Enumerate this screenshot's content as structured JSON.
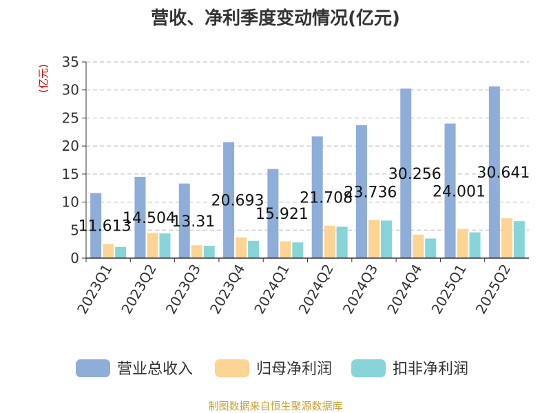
{
  "chart_data": {
    "type": "bar",
    "title": "营收、净利季度变动情况(亿元)",
    "ylabel": "(亿元)",
    "ylim": [
      0,
      35
    ],
    "yticks": [
      0,
      5,
      10,
      15,
      20,
      25,
      30,
      35
    ],
    "grid": true,
    "legend_position": "bottom",
    "categories": [
      "2023Q1",
      "2023Q2",
      "2023Q3",
      "2023Q4",
      "2024Q1",
      "2024Q2",
      "2024Q3",
      "2024Q4",
      "2025Q1",
      "2025Q2"
    ],
    "series": [
      {
        "name": "营业总收入",
        "color": "#8eadd9",
        "values": [
          11.613,
          14.504,
          13.31,
          20.693,
          15.921,
          21.708,
          23.736,
          30.256,
          24.001,
          30.641
        ],
        "labels": [
          "11.613",
          "14.504",
          "13.31",
          "20.693",
          "15.921",
          "21.708",
          "23.736",
          "30.256",
          "24.001",
          "30.641"
        ]
      },
      {
        "name": "归母净利润",
        "color": "#fdd493",
        "values": [
          2.5,
          4.5,
          2.3,
          3.7,
          3.0,
          5.8,
          6.8,
          4.2,
          5.2,
          7.1
        ]
      },
      {
        "name": "扣非净利润",
        "color": "#87d5d8",
        "values": [
          2.0,
          4.4,
          2.2,
          3.1,
          2.8,
          5.6,
          6.7,
          3.5,
          4.6,
          6.6
        ]
      }
    ]
  },
  "source": "制图数据来自恒生聚源数据库"
}
